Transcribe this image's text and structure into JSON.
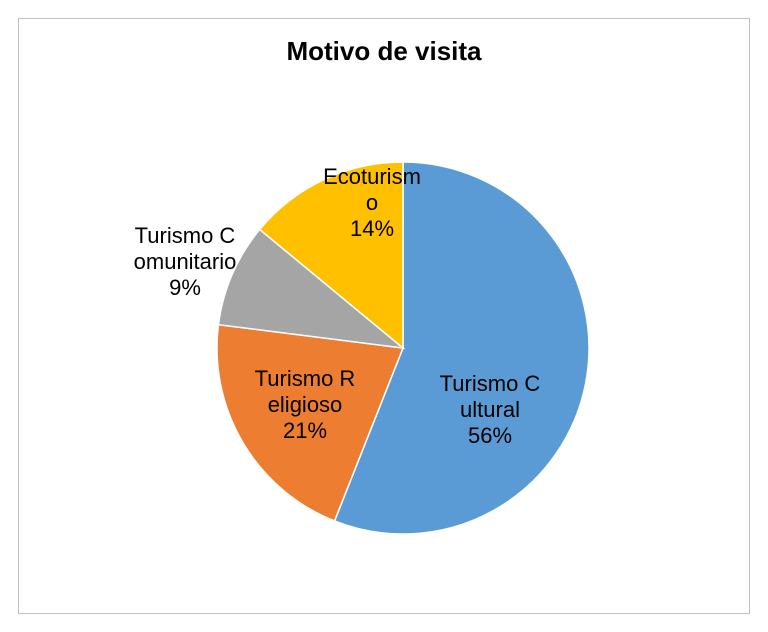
{
  "chart_data": {
    "type": "pie",
    "title": "Motivo de visita",
    "categories": [
      "Turismo Cultural",
      "Turismo Religioso",
      "Turismo Comunitario",
      "Ecoturismo"
    ],
    "values": [
      56,
      21,
      9,
      14
    ],
    "value_labels": [
      "56%",
      "21%",
      "9%",
      "14%"
    ],
    "colors": [
      "#5b9bd5",
      "#ed7d31",
      "#a5a5a5",
      "#ffc000"
    ]
  }
}
